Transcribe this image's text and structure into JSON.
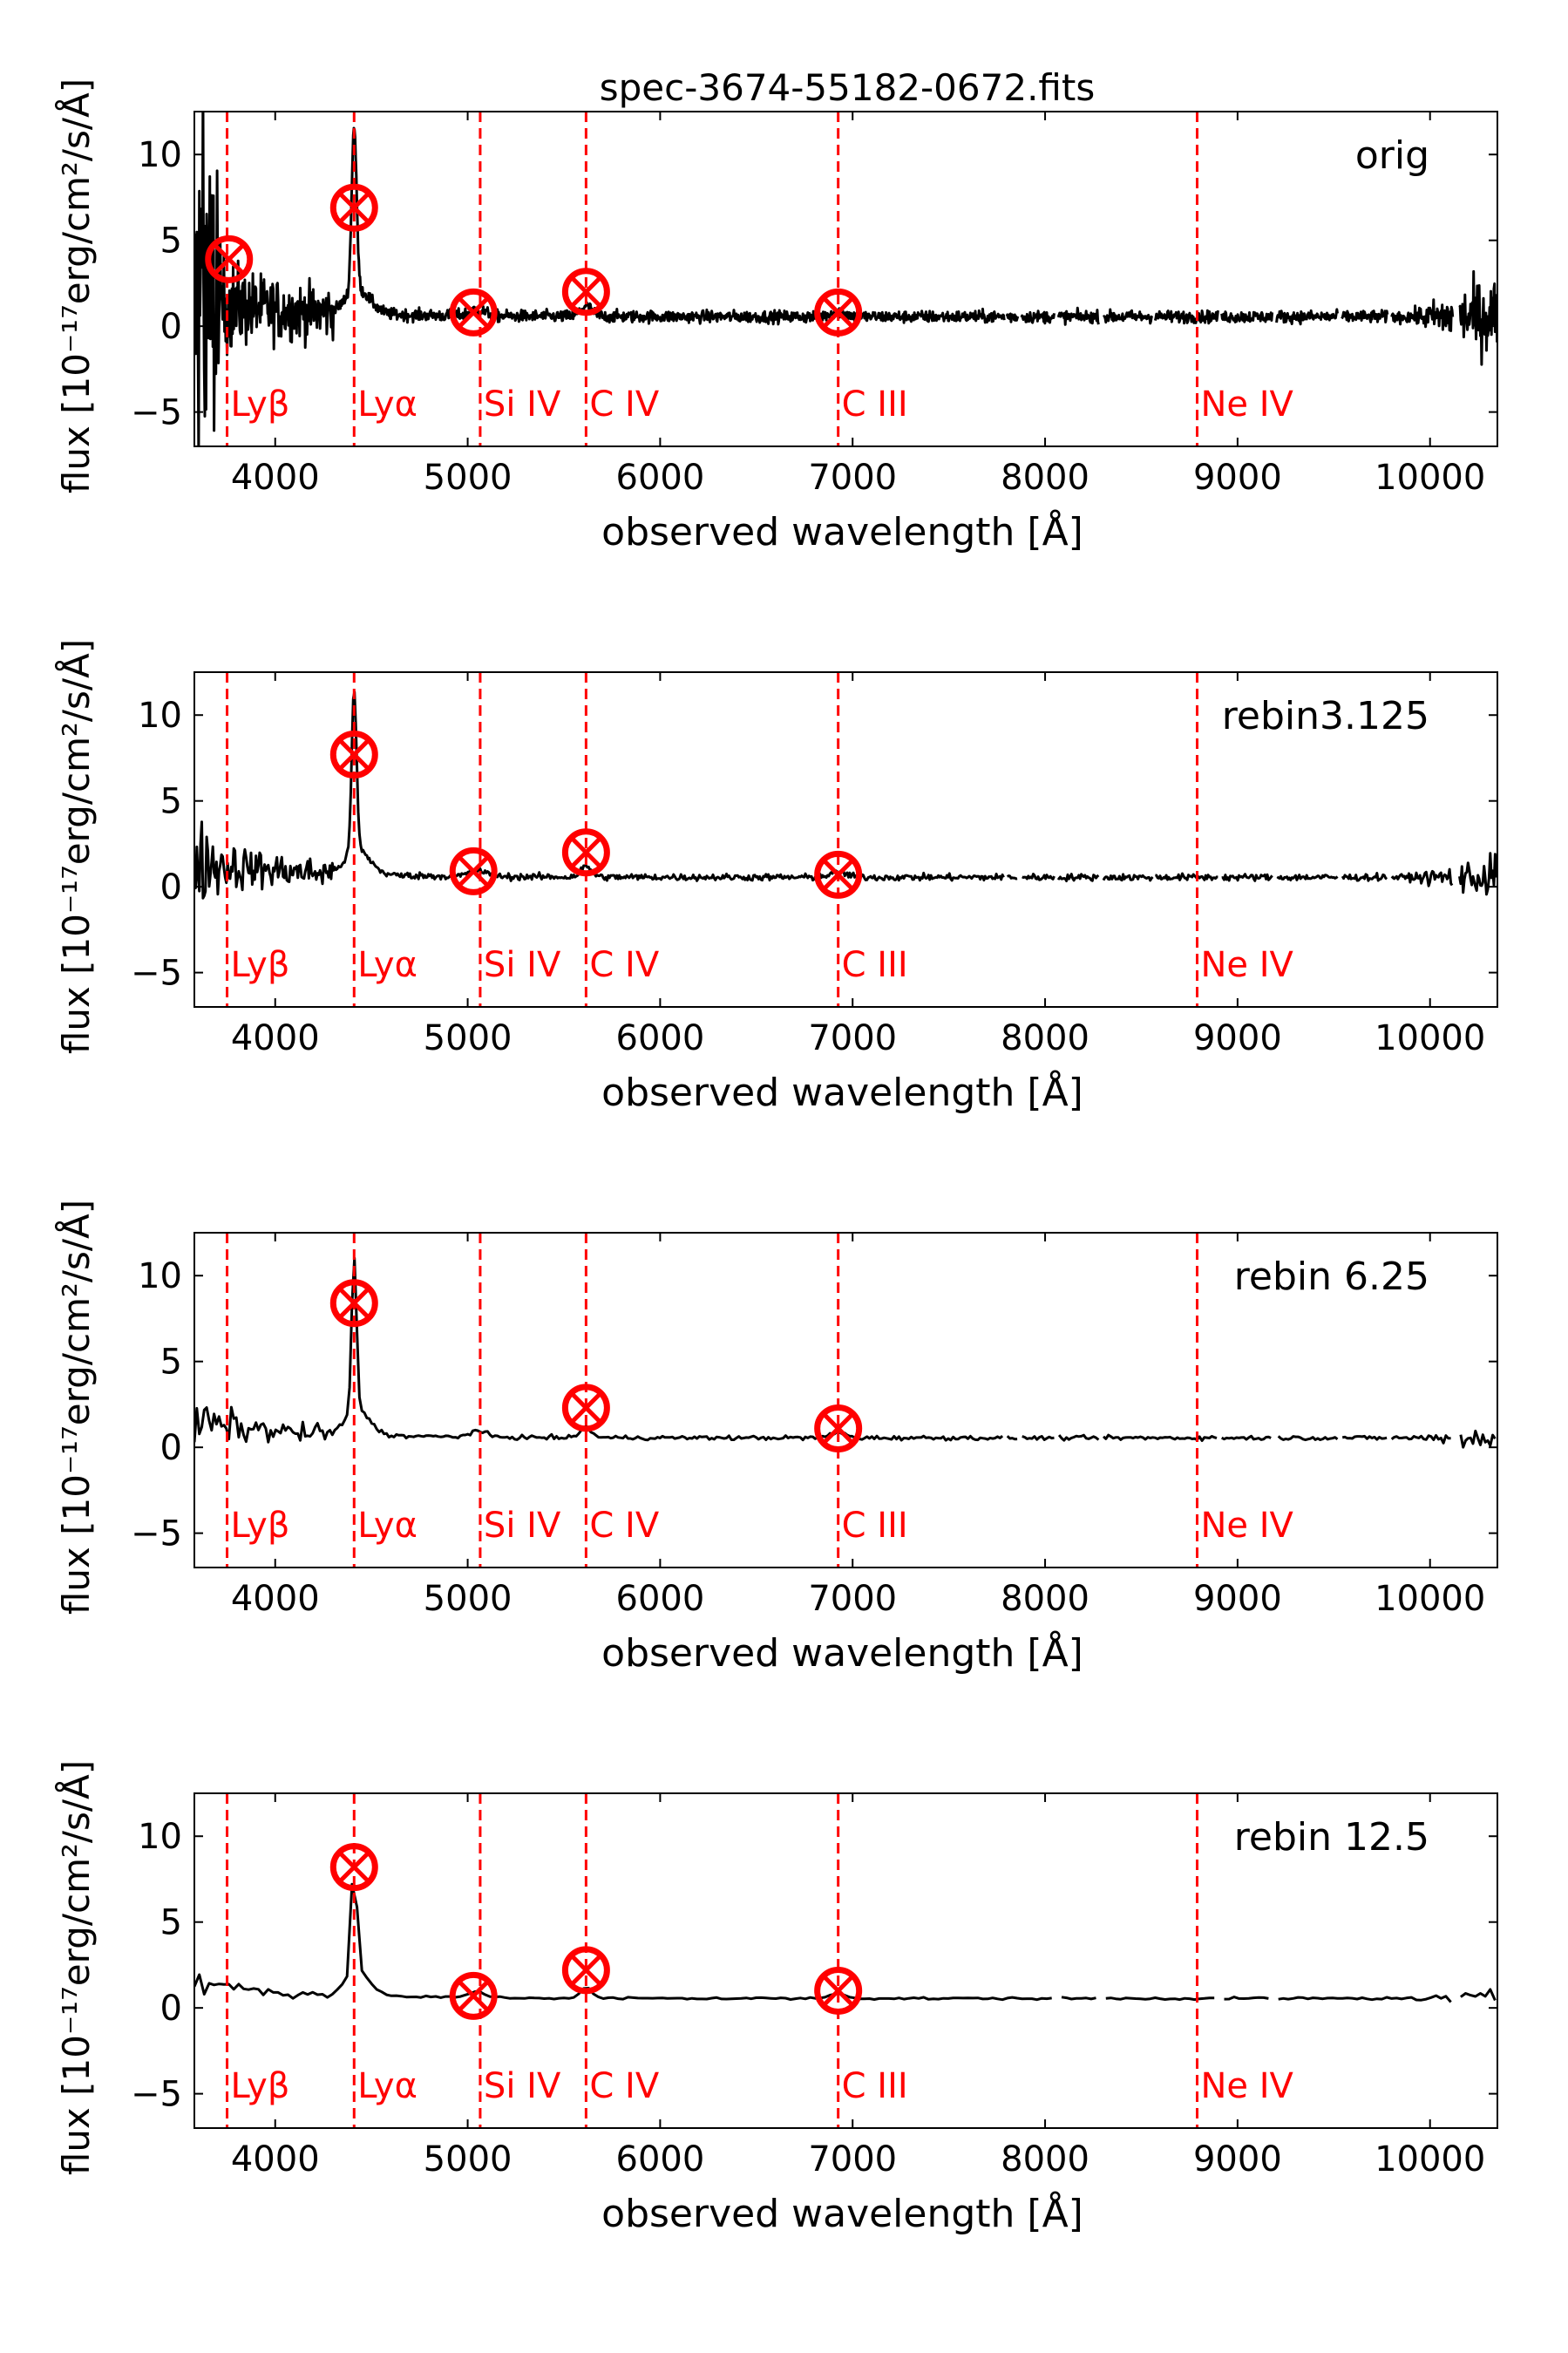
{
  "chart_data": {
    "type": "line",
    "title": "spec-3674-55182-0672.fits",
    "xlabel": "observed wavelength [Å]",
    "ylabel": "flux [10⁻¹⁷erg/cm²/s/Å]",
    "xlim": [
      3580,
      10350
    ],
    "ylim": [
      -7,
      12.5
    ],
    "xticks": [
      4000,
      5000,
      6000,
      7000,
      8000,
      9000,
      10000
    ],
    "xtick_labels": [
      "4000",
      "5000",
      "6000",
      "7000",
      "8000",
      "9000",
      "10000"
    ],
    "yticks": [
      -5,
      0,
      5,
      10
    ],
    "ytick_labels": [
      "−5",
      "0",
      "5",
      "10"
    ],
    "colors": {
      "line": "#000000",
      "marker": "#ff0000"
    },
    "lines": [
      {
        "name": "Lyβ",
        "wavelength": 3750
      },
      {
        "name": "Lyα",
        "wavelength": 4410
      },
      {
        "name": "Si IV",
        "wavelength": 5065
      },
      {
        "name": "C IV",
        "wavelength": 5615
      },
      {
        "name": "C III",
        "wavelength": 6925
      },
      {
        "name": "Ne IV",
        "wavelength": 8790
      }
    ],
    "panels": [
      {
        "label": "orig",
        "noise_amp": 1.0,
        "peak": 10.5,
        "markers": [
          {
            "line": "Lyβ",
            "x": 3760,
            "y": 3.9
          },
          {
            "line": "Lyα",
            "x": 4410,
            "y": 6.9
          },
          {
            "line": "Si IV",
            "x": 5030,
            "y": 0.8
          },
          {
            "line": "C IV",
            "x": 5615,
            "y": 2.0
          },
          {
            "line": "C III",
            "x": 6925,
            "y": 0.8
          }
        ]
      },
      {
        "label": "rebin3.125",
        "noise_amp": 0.55,
        "peak": 10.2,
        "markers": [
          {
            "line": "Lyα",
            "x": 4410,
            "y": 7.7
          },
          {
            "line": "Si IV",
            "x": 5030,
            "y": 0.9
          },
          {
            "line": "C IV",
            "x": 5615,
            "y": 2.0
          },
          {
            "line": "C III",
            "x": 6925,
            "y": 0.7
          }
        ]
      },
      {
        "label": "rebin 6.25",
        "noise_amp": 0.35,
        "peak": 10.0,
        "markers": [
          {
            "line": "Lyα",
            "x": 4410,
            "y": 8.4
          },
          {
            "line": "C IV",
            "x": 5615,
            "y": 2.3
          },
          {
            "line": "C III",
            "x": 6925,
            "y": 1.1
          }
        ]
      },
      {
        "label": "rebin 12.5",
        "noise_amp": 0.2,
        "peak": 8.3,
        "markers": [
          {
            "line": "Lyα",
            "x": 4410,
            "y": 8.2
          },
          {
            "line": "Si IV",
            "x": 5030,
            "y": 0.7
          },
          {
            "line": "C IV",
            "x": 5615,
            "y": 2.2
          },
          {
            "line": "C III",
            "x": 6925,
            "y": 1.0
          }
        ]
      }
    ]
  }
}
